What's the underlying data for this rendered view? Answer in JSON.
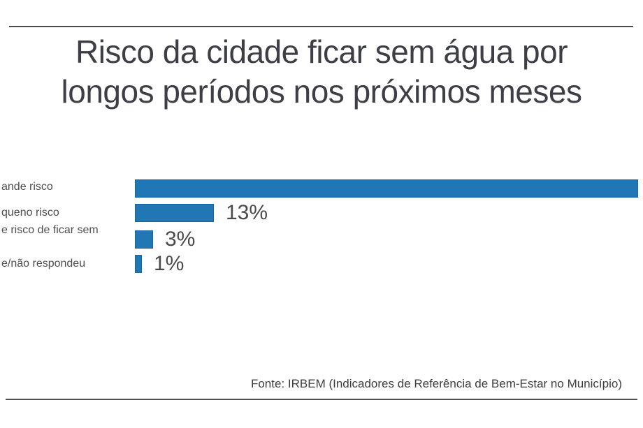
{
  "title": {
    "line1": "Risco da cidade ficar sem água por",
    "line2": "longos períodos nos próximos meses"
  },
  "footer": {
    "source": "Fonte: IRBEM (Indicadores de Referência de Bem-Estar no Município)"
  },
  "colors": {
    "bar_fill": "#2077b4",
    "bar_border": "#1a659f",
    "title_text": "#3e3e46",
    "label_text": "#4e4e4e",
    "rule": "#4b4b4b",
    "background": "#ffffff"
  },
  "chart_data": {
    "type": "bar",
    "orientation": "horizontal",
    "title": "Risco da cidade ficar sem água por longos períodos nos próximos meses",
    "categories": [
      "ande risco",
      "queno risco",
      "e risco de ficar sem",
      "e/não respondeu"
    ],
    "values": [
      83,
      13,
      3,
      1
    ],
    "value_labels": [
      "",
      "13%",
      "3%",
      "1%"
    ],
    "unit": "%",
    "xlim": [
      0,
      84
    ],
    "grid": false,
    "legend": false,
    "source": "Fonte: IRBEM (Indicadores de Referência de Bem-Estar no Município)",
    "notes_visible": {
      "first_bar_value_label_visible": false,
      "category_labels_clipped_at_left_edge": true
    }
  }
}
